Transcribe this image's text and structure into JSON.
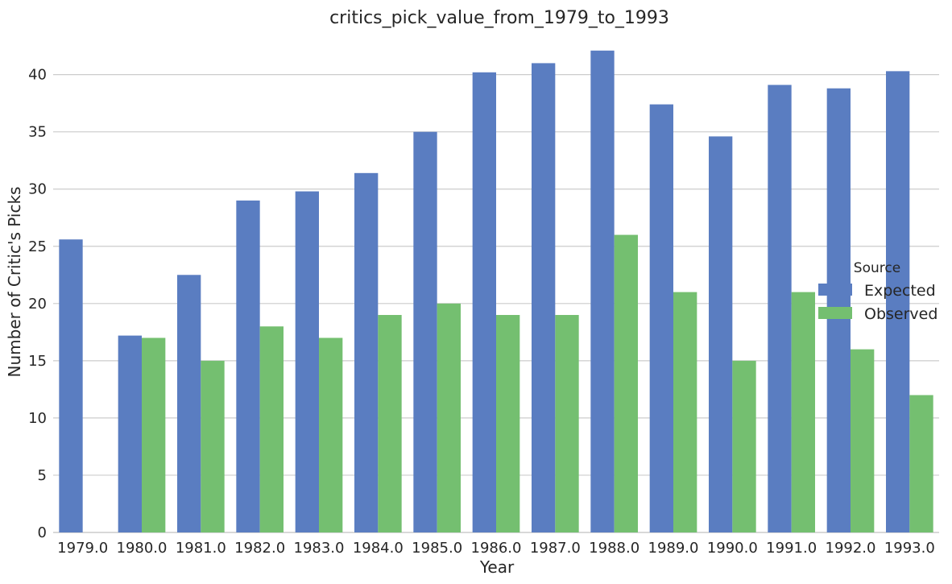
{
  "chart_data": {
    "type": "bar",
    "title": "critics_pick_value_from_1979_to_1993",
    "xlabel": "Year",
    "ylabel": "Number of Critic's Picks",
    "categories": [
      "1979.0",
      "1980.0",
      "1981.0",
      "1982.0",
      "1983.0",
      "1984.0",
      "1985.0",
      "1986.0",
      "1987.0",
      "1988.0",
      "1989.0",
      "1990.0",
      "1991.0",
      "1992.0",
      "1993.0"
    ],
    "series": [
      {
        "name": "Expected",
        "color": "#5a7dc1",
        "values": [
          25.6,
          17.2,
          22.5,
          29.0,
          29.8,
          31.4,
          35.0,
          40.2,
          41.0,
          42.1,
          37.4,
          34.6,
          39.1,
          38.8,
          40.3
        ]
      },
      {
        "name": "Observed",
        "color": "#74bf70",
        "values": [
          null,
          17,
          15,
          18,
          17,
          19,
          20,
          19,
          19,
          26,
          21,
          15,
          21,
          16,
          12
        ]
      }
    ],
    "legend_title": "Source",
    "legend_position": "right",
    "ylim": [
      0,
      43
    ],
    "yticks": [
      0,
      5,
      10,
      15,
      20,
      25,
      30,
      35,
      40
    ],
    "grid": "horizontal"
  }
}
